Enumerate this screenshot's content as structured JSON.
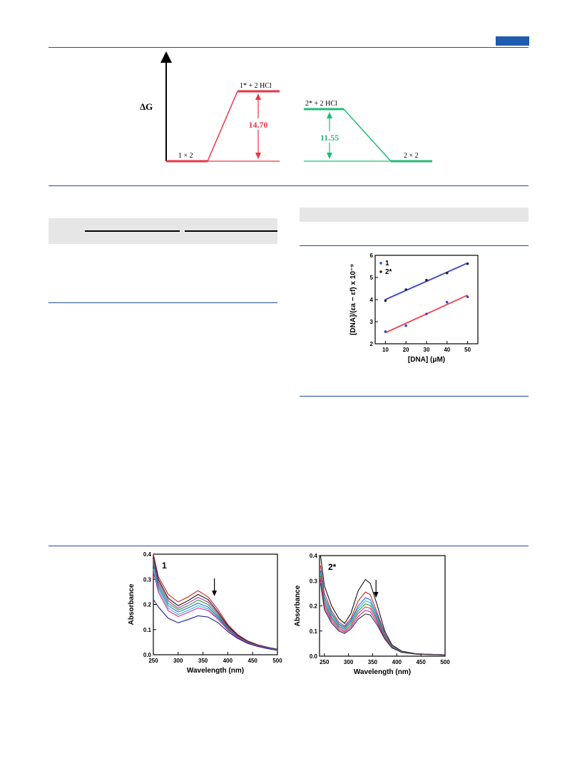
{
  "energy_diagram": {
    "y_label": "ΔG",
    "left": {
      "start_label": "1 × 2",
      "end_label": "1* + 2 HCl",
      "gap_value": "14.70",
      "color": "#ee3344"
    },
    "right": {
      "start_label": "2* + 2 HCl",
      "end_label": "2 × 2",
      "gap_value": "11.55",
      "color": "#22bb77"
    }
  },
  "chart_data": [
    {
      "type": "scatter",
      "xlabel": "[DNA] (μM)",
      "ylabel": "[DNA]/(εa − εf) x 10⁻⁹",
      "xlim": [
        5,
        55
      ],
      "ylim": [
        2,
        6
      ],
      "xticks": [
        10,
        20,
        30,
        40,
        50
      ],
      "yticks": [
        2,
        3,
        4,
        5,
        6
      ],
      "legend_position": "top-left",
      "series": [
        {
          "name": "1",
          "color": "#3344dd",
          "marker_color": "#3344dd",
          "x": [
            10,
            20,
            30,
            40,
            50
          ],
          "y": [
            2.55,
            2.82,
            3.35,
            3.88,
            4.12
          ],
          "fit": [
            [
              10,
              2.5
            ],
            [
              50,
              4.2
            ]
          ],
          "fit_color": "#ee4455"
        },
        {
          "name": "2*",
          "color": "#222222",
          "marker_color": "#222222",
          "x": [
            10,
            20,
            30,
            40,
            50
          ],
          "y": [
            3.95,
            4.45,
            4.88,
            5.2,
            5.62
          ],
          "fit": [
            [
              10,
              4.0
            ],
            [
              50,
              5.65
            ]
          ],
          "fit_color": "#3344cc"
        }
      ]
    },
    {
      "type": "line",
      "panel_label": "1",
      "xlabel": "Wavelength (nm)",
      "ylabel": "Absorbance",
      "xlim": [
        250,
        500
      ],
      "ylim": [
        0.0,
        0.4
      ],
      "xticks": [
        250,
        300,
        350,
        400,
        450,
        500
      ],
      "yticks": [
        "0.0",
        "0.1",
        "0.2",
        "0.3",
        "0.4"
      ],
      "arrow_x": 373,
      "series": [
        {
          "color": "#cc2222",
          "values": [
            [
              250,
              0.4
            ],
            [
              260,
              0.31
            ],
            [
              280,
              0.24
            ],
            [
              300,
              0.21
            ],
            [
              320,
              0.23
            ],
            [
              340,
              0.255
            ],
            [
              360,
              0.23
            ],
            [
              380,
              0.18
            ],
            [
              400,
              0.12
            ],
            [
              420,
              0.08
            ],
            [
              440,
              0.055
            ],
            [
              460,
              0.04
            ],
            [
              480,
              0.03
            ],
            [
              500,
              0.022
            ]
          ]
        },
        {
          "color": "#111111",
          "values": [
            [
              250,
              0.39
            ],
            [
              260,
              0.3
            ],
            [
              280,
              0.225
            ],
            [
              300,
              0.195
            ],
            [
              320,
              0.215
            ],
            [
              340,
              0.24
            ],
            [
              360,
              0.22
            ],
            [
              380,
              0.17
            ],
            [
              400,
              0.115
            ],
            [
              420,
              0.077
            ],
            [
              440,
              0.053
            ],
            [
              460,
              0.038
            ],
            [
              480,
              0.029
            ],
            [
              500,
              0.021
            ]
          ]
        },
        {
          "color": "#aa33aa",
          "values": [
            [
              250,
              0.38
            ],
            [
              260,
              0.29
            ],
            [
              280,
              0.215
            ],
            [
              300,
              0.185
            ],
            [
              320,
              0.205
            ],
            [
              340,
              0.228
            ],
            [
              360,
              0.21
            ],
            [
              380,
              0.163
            ],
            [
              400,
              0.11
            ],
            [
              420,
              0.074
            ],
            [
              440,
              0.051
            ],
            [
              460,
              0.037
            ],
            [
              480,
              0.028
            ],
            [
              500,
              0.02
            ]
          ]
        },
        {
          "color": "#2a9a2a",
          "values": [
            [
              250,
              0.37
            ],
            [
              260,
              0.28
            ],
            [
              280,
              0.205
            ],
            [
              300,
              0.178
            ],
            [
              320,
              0.195
            ],
            [
              340,
              0.218
            ],
            [
              360,
              0.2
            ],
            [
              380,
              0.156
            ],
            [
              400,
              0.106
            ],
            [
              420,
              0.072
            ],
            [
              440,
              0.05
            ],
            [
              460,
              0.036
            ],
            [
              480,
              0.027
            ],
            [
              500,
              0.02
            ]
          ]
        },
        {
          "color": "#2266ee",
          "values": [
            [
              250,
              0.36
            ],
            [
              260,
              0.27
            ],
            [
              280,
              0.195
            ],
            [
              300,
              0.17
            ],
            [
              320,
              0.186
            ],
            [
              340,
              0.205
            ],
            [
              360,
              0.19
            ],
            [
              380,
              0.15
            ],
            [
              400,
              0.102
            ],
            [
              420,
              0.07
            ],
            [
              440,
              0.048
            ],
            [
              460,
              0.035
            ],
            [
              480,
              0.026
            ],
            [
              500,
              0.019
            ]
          ]
        },
        {
          "color": "#22bbcc",
          "values": [
            [
              250,
              0.34
            ],
            [
              260,
              0.26
            ],
            [
              280,
              0.185
            ],
            [
              300,
              0.16
            ],
            [
              320,
              0.176
            ],
            [
              340,
              0.195
            ],
            [
              360,
              0.182
            ],
            [
              380,
              0.145
            ],
            [
              400,
              0.099
            ],
            [
              420,
              0.068
            ],
            [
              440,
              0.047
            ],
            [
              460,
              0.034
            ],
            [
              480,
              0.025
            ],
            [
              500,
              0.019
            ]
          ]
        },
        {
          "color": "#ee2288",
          "values": [
            [
              250,
              0.33
            ],
            [
              260,
              0.25
            ],
            [
              280,
              0.175
            ],
            [
              300,
              0.152
            ],
            [
              320,
              0.168
            ],
            [
              340,
              0.186
            ],
            [
              360,
              0.176
            ],
            [
              380,
              0.142
            ],
            [
              400,
              0.098
            ],
            [
              420,
              0.068
            ],
            [
              440,
              0.047
            ],
            [
              460,
              0.034
            ],
            [
              480,
              0.025
            ],
            [
              500,
              0.018
            ]
          ]
        },
        {
          "color": "#1a1a9a",
          "values": [
            [
              250,
              0.22
            ],
            [
              260,
              0.19
            ],
            [
              280,
              0.145
            ],
            [
              300,
              0.127
            ],
            [
              320,
              0.14
            ],
            [
              340,
              0.155
            ],
            [
              360,
              0.15
            ],
            [
              380,
              0.128
            ],
            [
              400,
              0.092
            ],
            [
              420,
              0.065
            ],
            [
              440,
              0.045
            ],
            [
              460,
              0.033
            ],
            [
              480,
              0.024
            ],
            [
              500,
              0.018
            ]
          ]
        }
      ]
    },
    {
      "type": "line",
      "panel_label": "2*",
      "xlabel": "Wavelength (nm)",
      "ylabel": "Absorbance",
      "xlim": [
        240,
        500
      ],
      "ylim": [
        0.0,
        0.4
      ],
      "xticks": [
        250,
        300,
        350,
        400,
        450,
        500
      ],
      "yticks": [
        "0.0",
        "0.1",
        "0.2",
        "0.3",
        "0.4"
      ],
      "arrow_x": 357,
      "series": [
        {
          "color": "#111111",
          "values": [
            [
              242,
              0.4
            ],
            [
              250,
              0.28
            ],
            [
              265,
              0.2
            ],
            [
              280,
              0.15
            ],
            [
              292,
              0.13
            ],
            [
              305,
              0.17
            ],
            [
              320,
              0.26
            ],
            [
              335,
              0.305
            ],
            [
              345,
              0.29
            ],
            [
              360,
              0.2
            ],
            [
              375,
              0.1
            ],
            [
              390,
              0.045
            ],
            [
              410,
              0.02
            ],
            [
              440,
              0.01
            ],
            [
              500,
              0.005
            ]
          ]
        },
        {
          "color": "#cc2222",
          "values": [
            [
              242,
              0.36
            ],
            [
              250,
              0.25
            ],
            [
              265,
              0.18
            ],
            [
              280,
              0.135
            ],
            [
              292,
              0.12
            ],
            [
              305,
              0.15
            ],
            [
              320,
              0.22
            ],
            [
              335,
              0.255
            ],
            [
              345,
              0.245
            ],
            [
              360,
              0.17
            ],
            [
              375,
              0.09
            ],
            [
              390,
              0.04
            ],
            [
              410,
              0.018
            ],
            [
              440,
              0.009
            ],
            [
              500,
              0.005
            ]
          ]
        },
        {
          "color": "#2266ee",
          "values": [
            [
              242,
              0.34
            ],
            [
              250,
              0.235
            ],
            [
              265,
              0.17
            ],
            [
              280,
              0.128
            ],
            [
              292,
              0.115
            ],
            [
              305,
              0.142
            ],
            [
              320,
              0.2
            ],
            [
              335,
              0.232
            ],
            [
              345,
              0.225
            ],
            [
              360,
              0.16
            ],
            [
              375,
              0.085
            ],
            [
              390,
              0.038
            ],
            [
              410,
              0.017
            ],
            [
              440,
              0.009
            ],
            [
              500,
              0.005
            ]
          ]
        },
        {
          "color": "#22bbcc",
          "values": [
            [
              242,
              0.33
            ],
            [
              250,
              0.225
            ],
            [
              265,
              0.163
            ],
            [
              280,
              0.123
            ],
            [
              292,
              0.11
            ],
            [
              305,
              0.137
            ],
            [
              320,
              0.19
            ],
            [
              335,
              0.22
            ],
            [
              345,
              0.213
            ],
            [
              360,
              0.152
            ],
            [
              375,
              0.082
            ],
            [
              390,
              0.037
            ],
            [
              410,
              0.017
            ],
            [
              440,
              0.009
            ],
            [
              500,
              0.005
            ]
          ]
        },
        {
          "color": "#2a9a2a",
          "values": [
            [
              242,
              0.32
            ],
            [
              250,
              0.215
            ],
            [
              265,
              0.155
            ],
            [
              280,
              0.118
            ],
            [
              292,
              0.106
            ],
            [
              305,
              0.13
            ],
            [
              320,
              0.18
            ],
            [
              335,
              0.208
            ],
            [
              345,
              0.202
            ],
            [
              360,
              0.145
            ],
            [
              375,
              0.078
            ],
            [
              390,
              0.036
            ],
            [
              410,
              0.016
            ],
            [
              440,
              0.009
            ],
            [
              500,
              0.005
            ]
          ]
        },
        {
          "color": "#ee2288",
          "values": [
            [
              242,
              0.31
            ],
            [
              250,
              0.205
            ],
            [
              265,
              0.148
            ],
            [
              280,
              0.112
            ],
            [
              292,
              0.1
            ],
            [
              305,
              0.122
            ],
            [
              320,
              0.17
            ],
            [
              335,
              0.196
            ],
            [
              345,
              0.19
            ],
            [
              360,
              0.138
            ],
            [
              375,
              0.075
            ],
            [
              390,
              0.035
            ],
            [
              410,
              0.016
            ],
            [
              440,
              0.008
            ],
            [
              500,
              0.005
            ]
          ]
        },
        {
          "color": "#aa33aa",
          "values": [
            [
              242,
              0.3
            ],
            [
              250,
              0.195
            ],
            [
              265,
              0.14
            ],
            [
              280,
              0.106
            ],
            [
              292,
              0.095
            ],
            [
              305,
              0.115
            ],
            [
              320,
              0.158
            ],
            [
              335,
              0.182
            ],
            [
              345,
              0.177
            ],
            [
              360,
              0.13
            ],
            [
              375,
              0.072
            ],
            [
              390,
              0.034
            ],
            [
              410,
              0.016
            ],
            [
              440,
              0.008
            ],
            [
              500,
              0.005
            ]
          ]
        },
        {
          "color": "#333333",
          "values": [
            [
              242,
              0.29
            ],
            [
              250,
              0.185
            ],
            [
              265,
              0.132
            ],
            [
              280,
              0.1
            ],
            [
              292,
              0.09
            ],
            [
              305,
              0.108
            ],
            [
              320,
              0.147
            ],
            [
              335,
              0.168
            ],
            [
              345,
              0.164
            ],
            [
              360,
              0.122
            ],
            [
              375,
              0.068
            ],
            [
              390,
              0.033
            ],
            [
              410,
              0.015
            ],
            [
              440,
              0.008
            ],
            [
              500,
              0.005
            ]
          ]
        }
      ]
    }
  ]
}
